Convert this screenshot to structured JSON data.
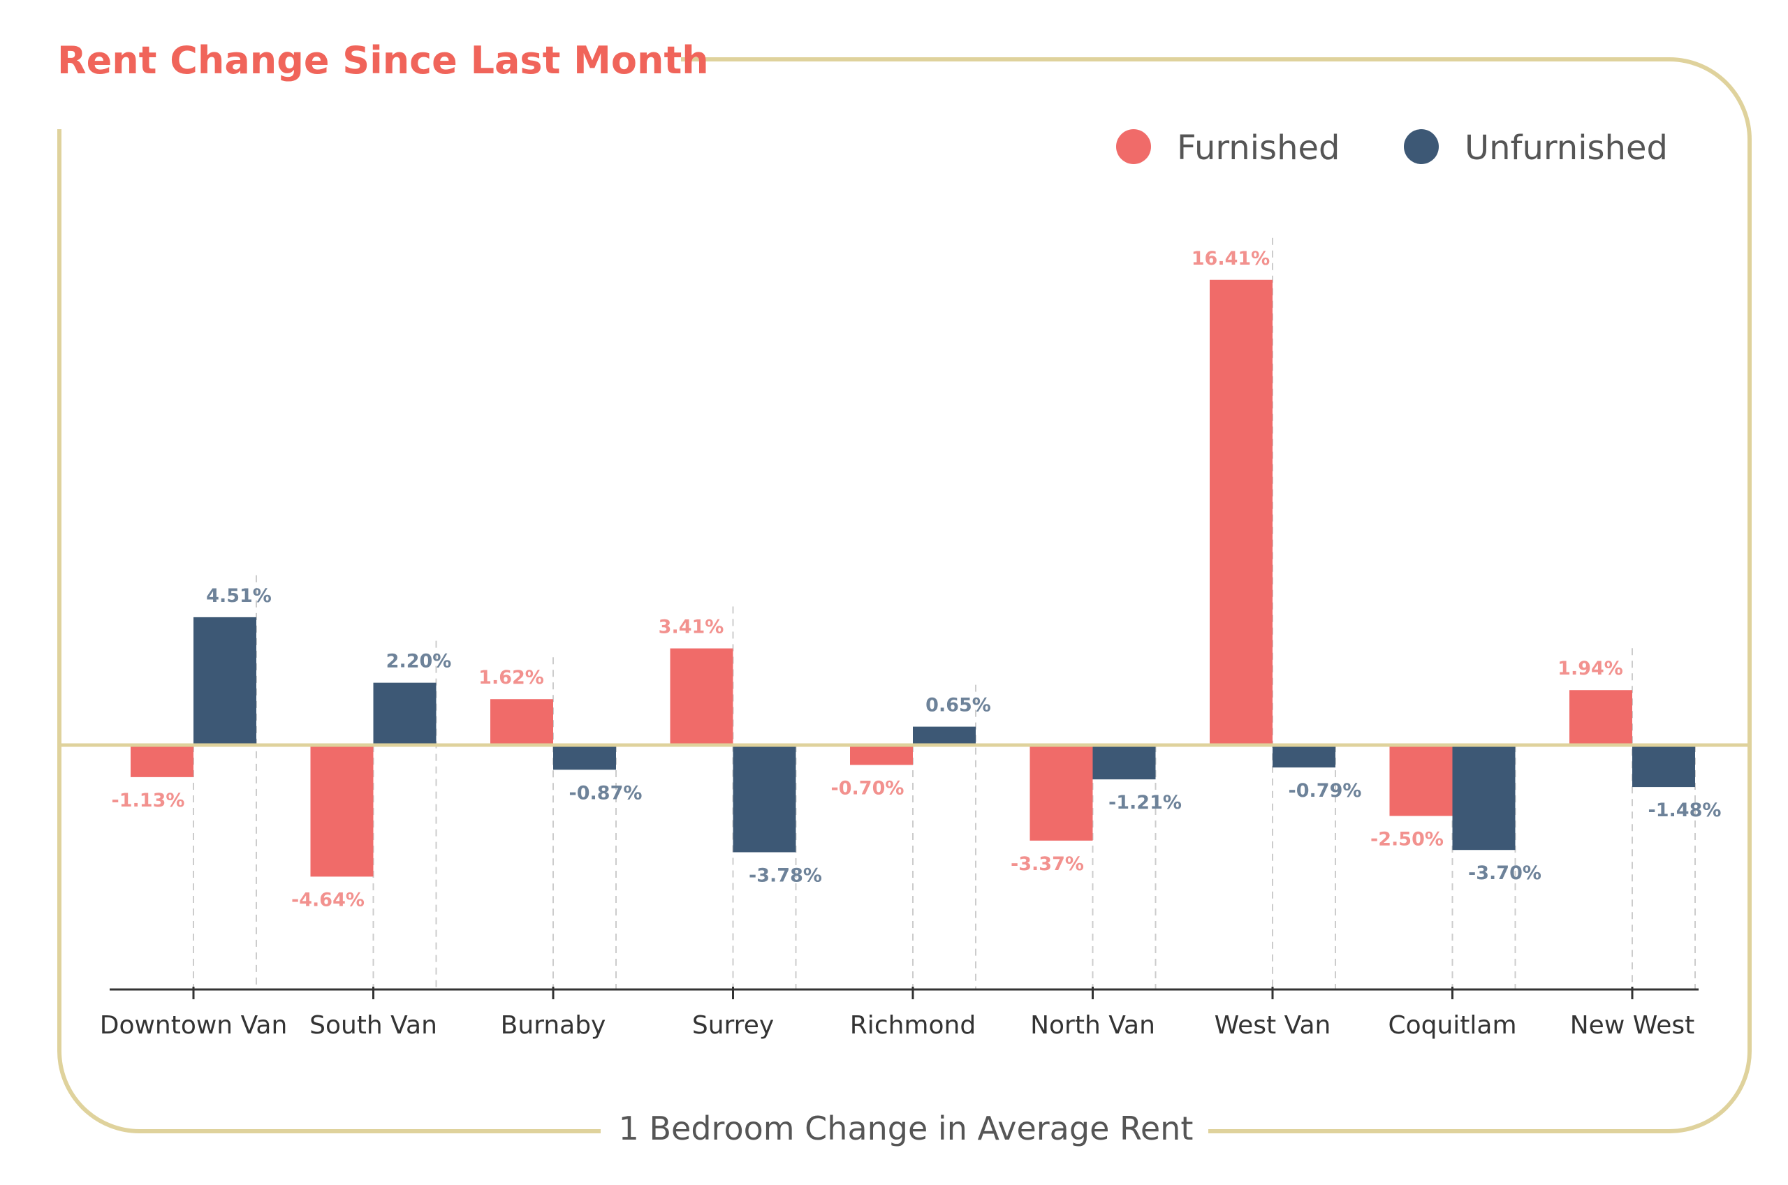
{
  "chart_data": {
    "type": "bar",
    "title": "Rent Change Since Last Month",
    "subtitle": "1 Bedroom Change in Average Rent",
    "xlabel": "",
    "ylabel": "",
    "ylim": [
      -10,
      20
    ],
    "grid": false,
    "legend_position": "top-right",
    "categories": [
      "Downtown Van",
      "South Van",
      "Burnaby",
      "Surrey",
      "Richmond",
      "North Van",
      "West Van",
      "Coquitlam",
      "New West"
    ],
    "series": [
      {
        "name": "Furnished",
        "color": "#f06b69",
        "label_color": "#f2918e",
        "values": [
          -1.13,
          -4.64,
          1.62,
          3.41,
          -0.7,
          -3.37,
          16.41,
          -2.5,
          1.94
        ],
        "labels": [
          "-1.13%",
          "-4.64%",
          "1.62%",
          "3.41%",
          "-0.70%",
          "-3.37%",
          "16.41%",
          "-2.50%",
          "1.94%"
        ]
      },
      {
        "name": "Unfurnished",
        "color": "#3d5875",
        "label_color": "#6d8299",
        "values": [
          4.51,
          2.2,
          -0.87,
          -3.78,
          0.65,
          -1.21,
          -0.79,
          -3.7,
          -1.48
        ],
        "labels": [
          "4.51%",
          "2.20%",
          "-0.87%",
          "-3.78%",
          "0.65%",
          "-1.21%",
          "-0.79%",
          "-3.70%",
          "-1.48%"
        ]
      }
    ],
    "colors": {
      "title": "#f0645a",
      "frame": "#dfd29c",
      "zero_line": "#dfd29c",
      "axis": "#333333",
      "text": "#333333",
      "legend_text": "#555555",
      "guide": "#cccccc"
    }
  }
}
